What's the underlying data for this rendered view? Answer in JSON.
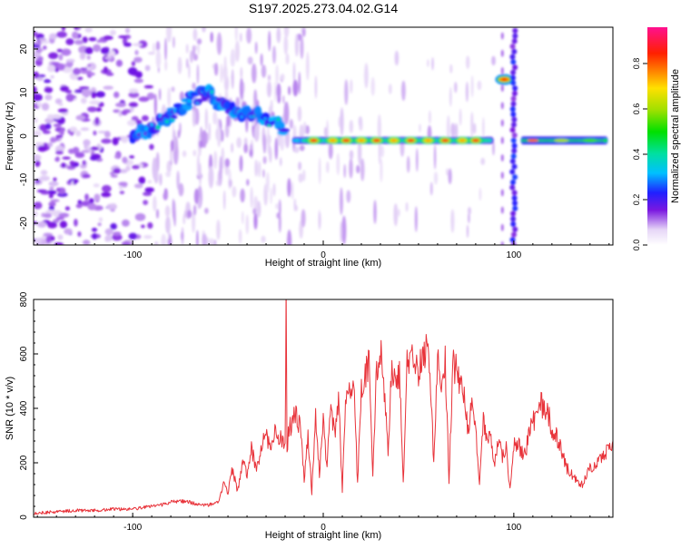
{
  "figure_title": "S197.2025.273.04.02.G14",
  "chart_data": [
    {
      "type": "heatmap",
      "title": "S197.2025.273.04.02.G14",
      "xlabel": "Height of straight line (km)",
      "ylabel": "Frequency (Hz)",
      "xlim": [
        -152,
        152
      ],
      "ylim": [
        -25,
        25
      ],
      "xticks": [
        -100,
        0,
        100
      ],
      "yticks": [
        20,
        10,
        0,
        -10,
        -20
      ],
      "colorbar": {
        "label": "Normalized spectral amplitude",
        "range": [
          0,
          0.96
        ],
        "ticks": [
          0.0,
          0.2,
          0.4,
          0.6,
          0.8
        ],
        "tick_labels": [
          "0.0",
          "0.2",
          "0.4",
          "0.6",
          "0.8"
        ]
      },
      "features": [
        {
          "name": "low-height noise",
          "x_range": [
            -152,
            -95
          ],
          "freq_range": [
            -25,
            25
          ],
          "amplitude": 0.1
        },
        {
          "name": "rising trace",
          "x": [
            -100,
            -90,
            -80,
            -70,
            -60,
            -50,
            -40,
            -30,
            -20
          ],
          "freq": [
            0.5,
            2,
            5,
            8,
            10,
            6,
            5,
            4,
            2
          ],
          "amplitude": 0.3
        },
        {
          "name": "main carrier line",
          "x_range": [
            -15,
            88
          ],
          "freq": -1,
          "amplitude": 0.9,
          "peaks_x": [
            -5,
            5,
            12,
            20,
            28,
            37,
            46,
            55,
            64,
            73,
            80
          ]
        },
        {
          "name": "upper spot",
          "x": 95,
          "freq": 13,
          "amplitude": 0.85
        },
        {
          "name": "vertical broadband band",
          "x": 100,
          "freq_range": [
            -25,
            25
          ],
          "amplitude": 0.2
        },
        {
          "name": "right carrier line",
          "x_range": [
            105,
            148
          ],
          "freq": -1,
          "amplitude": 0.8
        }
      ]
    },
    {
      "type": "line",
      "xlabel": "Height of straight line (km)",
      "ylabel": "SNR (10 * v/v)",
      "xlim": [
        -152,
        152
      ],
      "ylim": [
        0,
        800
      ],
      "xticks": [
        -100,
        0,
        100
      ],
      "yticks": [
        0,
        200,
        400,
        600,
        800
      ],
      "series": [
        {
          "name": "SNR",
          "color": "#e8333a",
          "x": [
            -152,
            -140,
            -130,
            -120,
            -110,
            -100,
            -95,
            -90,
            -85,
            -80,
            -75,
            -70,
            -65,
            -60,
            -55,
            -52,
            -50,
            -48,
            -45,
            -42,
            -40,
            -38,
            -35,
            -32,
            -30,
            -28,
            -25,
            -22,
            -20,
            -19.5,
            -19,
            -18,
            -15,
            -12,
            -10,
            -8,
            -6,
            -4,
            -2,
            0,
            2,
            4,
            6,
            8,
            10,
            12,
            14,
            16,
            18,
            20,
            22,
            24,
            26,
            28,
            30,
            32,
            34,
            36,
            38,
            40,
            42,
            44,
            46,
            48,
            50,
            52,
            54,
            56,
            58,
            60,
            62,
            64,
            66,
            68,
            70,
            72,
            74,
            76,
            78,
            80,
            82,
            84,
            86,
            88,
            90,
            92,
            94,
            96,
            98,
            100,
            102,
            104,
            106,
            108,
            110,
            112,
            114,
            116,
            118,
            120,
            124,
            128,
            132,
            136,
            140,
            144,
            148,
            152
          ],
          "y": [
            15,
            20,
            25,
            25,
            30,
            30,
            35,
            40,
            45,
            55,
            60,
            55,
            45,
            45,
            60,
            130,
            80,
            180,
            100,
            200,
            150,
            260,
            180,
            270,
            300,
            250,
            330,
            280,
            260,
            800,
            250,
            320,
            380,
            330,
            140,
            300,
            90,
            380,
            160,
            360,
            180,
            420,
            300,
            440,
            100,
            470,
            440,
            500,
            120,
            480,
            520,
            560,
            150,
            560,
            600,
            480,
            230,
            560,
            500,
            530,
            120,
            560,
            600,
            580,
            540,
            600,
            610,
            560,
            190,
            580,
            520,
            590,
            130,
            570,
            530,
            490,
            440,
            330,
            400,
            320,
            120,
            350,
            300,
            280,
            200,
            300,
            220,
            250,
            100,
            260,
            270,
            240,
            230,
            310,
            360,
            350,
            420,
            400,
            380,
            330,
            270,
            180,
            140,
            120,
            180,
            200,
            230,
            280
          ]
        }
      ]
    }
  ]
}
